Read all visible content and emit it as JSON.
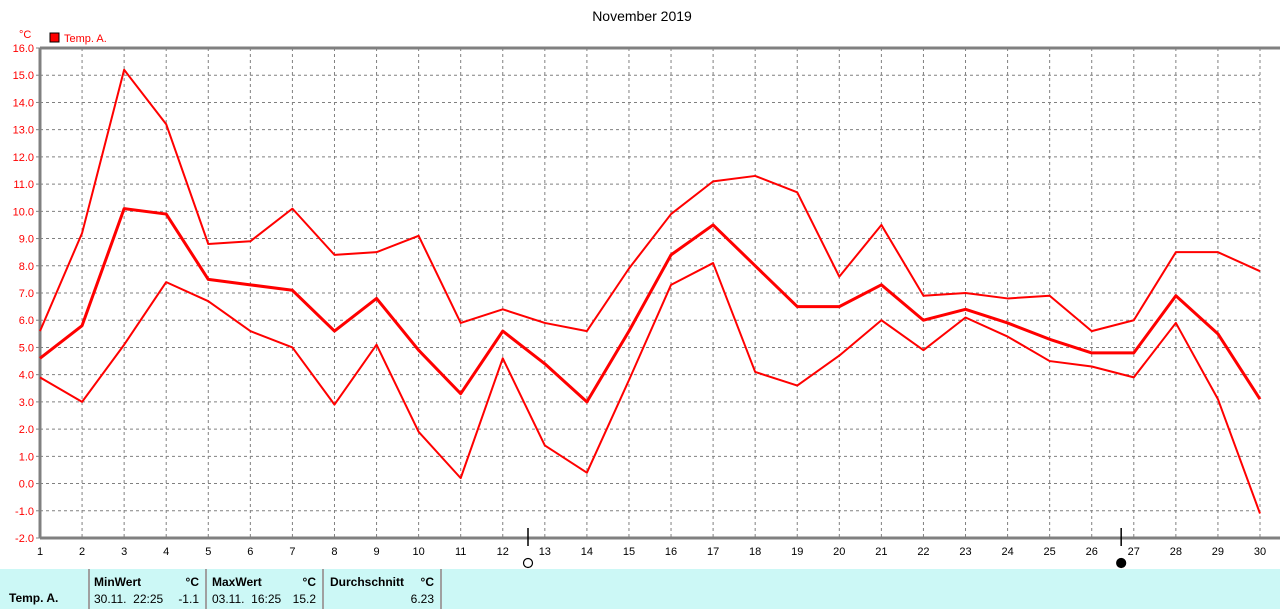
{
  "chart_data": {
    "type": "line",
    "title": "November 2019",
    "ylabel": "°C",
    "legend": [
      {
        "name": "Temp. A.",
        "color": "#ff0000"
      }
    ],
    "legend_placement": "top-left",
    "grid": true,
    "ylim": [
      -2.0,
      16.0
    ],
    "yticks": [
      "16.0",
      "15.0",
      "14.0",
      "13.0",
      "12.0",
      "11.0",
      "10.0",
      "9.0",
      "8.0",
      "7.0",
      "6.0",
      "5.0",
      "4.0",
      "3.0",
      "2.0",
      "1.0",
      "0.0",
      "-1.0",
      "-2.0"
    ],
    "x": [
      1,
      2,
      3,
      4,
      5,
      6,
      7,
      8,
      9,
      10,
      11,
      12,
      13,
      14,
      15,
      16,
      17,
      18,
      19,
      20,
      21,
      22,
      23,
      24,
      25,
      26,
      27,
      28,
      29,
      30
    ],
    "series": [
      {
        "role": "max",
        "color": "#ff0000",
        "values": [
          5.6,
          9.2,
          15.2,
          13.2,
          8.8,
          8.9,
          10.1,
          8.4,
          8.5,
          9.1,
          5.9,
          6.4,
          5.9,
          5.6,
          7.9,
          9.9,
          11.1,
          11.3,
          10.7,
          7.6,
          9.5,
          6.9,
          7.0,
          6.8,
          6.9,
          5.6,
          6.0,
          8.5,
          8.5,
          7.8
        ]
      },
      {
        "role": "avg",
        "color": "#ff0000",
        "values": [
          4.6,
          5.8,
          10.1,
          9.9,
          7.5,
          7.3,
          7.1,
          5.6,
          6.8,
          4.9,
          3.3,
          5.6,
          4.4,
          3.0,
          5.6,
          8.4,
          9.5,
          8.0,
          6.5,
          6.5,
          7.3,
          6.0,
          6.4,
          5.9,
          5.3,
          4.8,
          4.8,
          6.9,
          5.5,
          3.1
        ]
      },
      {
        "role": "min",
        "color": "#ff0000",
        "values": [
          3.9,
          3.0,
          5.1,
          7.4,
          6.7,
          5.6,
          5.0,
          2.9,
          5.1,
          1.9,
          0.2,
          4.6,
          1.4,
          0.4,
          3.8,
          7.3,
          8.1,
          4.1,
          3.6,
          4.7,
          6.0,
          4.9,
          6.1,
          5.4,
          4.5,
          4.3,
          3.9,
          5.9,
          3.1,
          -1.1
        ]
      }
    ],
    "moon_phases": [
      {
        "phase": "full-moon-icon",
        "day": 12.6
      },
      {
        "phase": "new-moon-icon",
        "day": 26.7
      }
    ]
  },
  "stats": {
    "series_label": "Temp. A.",
    "min": {
      "header": "MinWert",
      "unit": "°C",
      "datetime": "30.11.  22:25",
      "value": "-1.1"
    },
    "max": {
      "header": "MaxWert",
      "unit": "°C",
      "datetime": "03.11.  16:25",
      "value": "15.2"
    },
    "avg": {
      "header": "Durchschnitt",
      "unit": "°C",
      "value": "6.23"
    }
  }
}
